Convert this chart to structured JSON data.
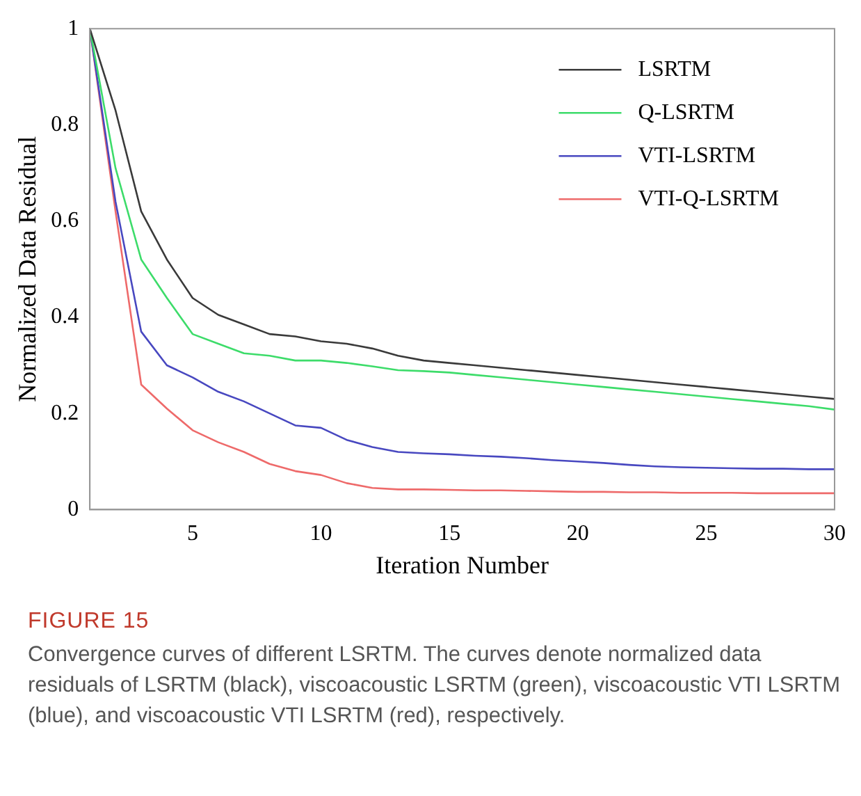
{
  "chart_data": {
    "type": "line",
    "xlabel": "Iteration Number",
    "ylabel": "Normalized Data Residual",
    "x": [
      1,
      2,
      3,
      4,
      5,
      6,
      7,
      8,
      9,
      10,
      11,
      12,
      13,
      14,
      15,
      16,
      17,
      18,
      19,
      20,
      21,
      22,
      23,
      24,
      25,
      26,
      27,
      28,
      29,
      30
    ],
    "xlim": [
      1,
      30
    ],
    "xticks": [
      5,
      10,
      15,
      20,
      25,
      30
    ],
    "ylim": [
      0,
      1
    ],
    "yticks": [
      0,
      0.2,
      0.4,
      0.6,
      0.8,
      1
    ],
    "grid": false,
    "legend": "top right",
    "marker": "none",
    "line_style": "solid",
    "series": [
      {
        "name": "LSRTM",
        "color": "#3a3a3a",
        "values": [
          1,
          0.83,
          0.62,
          0.52,
          0.44,
          0.405,
          0.385,
          0.365,
          0.36,
          0.35,
          0.345,
          0.335,
          0.32,
          0.31,
          0.305,
          0.3,
          0.295,
          0.29,
          0.285,
          0.28,
          0.275,
          0.27,
          0.265,
          0.26,
          0.255,
          0.25,
          0.245,
          0.24,
          0.235,
          0.23
        ]
      },
      {
        "name": "Q-LSRTM",
        "color": "#3ddc6a",
        "values": [
          1,
          0.71,
          0.52,
          0.44,
          0.365,
          0.345,
          0.325,
          0.32,
          0.31,
          0.31,
          0.305,
          0.298,
          0.29,
          0.288,
          0.285,
          0.28,
          0.275,
          0.27,
          0.265,
          0.26,
          0.255,
          0.25,
          0.245,
          0.24,
          0.235,
          0.23,
          0.225,
          0.22,
          0.215,
          0.208
        ]
      },
      {
        "name": "VTI-LSRTM",
        "color": "#4848c0",
        "values": [
          1,
          0.64,
          0.37,
          0.3,
          0.275,
          0.245,
          0.225,
          0.2,
          0.175,
          0.17,
          0.145,
          0.13,
          0.12,
          0.117,
          0.115,
          0.112,
          0.11,
          0.107,
          0.103,
          0.1,
          0.097,
          0.093,
          0.09,
          0.088,
          0.087,
          0.086,
          0.085,
          0.085,
          0.084,
          0.084
        ]
      },
      {
        "name": "VTI-Q-LSRTM",
        "color": "#ee6a6a",
        "values": [
          1,
          0.62,
          0.26,
          0.21,
          0.165,
          0.14,
          0.12,
          0.095,
          0.08,
          0.072,
          0.055,
          0.045,
          0.042,
          0.042,
          0.041,
          0.04,
          0.04,
          0.039,
          0.038,
          0.037,
          0.037,
          0.036,
          0.036,
          0.035,
          0.035,
          0.035,
          0.034,
          0.034,
          0.034,
          0.034
        ]
      }
    ],
    "annotations": [
      "FIGURE 15",
      "Convergence curves of different LSRTM. The curves denote normalized data residuals of LSRTM (black), viscoacoustic LSRTM (green), viscoacoustic VTI LSRTM (blue), and viscoacoustic VTI LSRTM (red), respectively."
    ]
  }
}
